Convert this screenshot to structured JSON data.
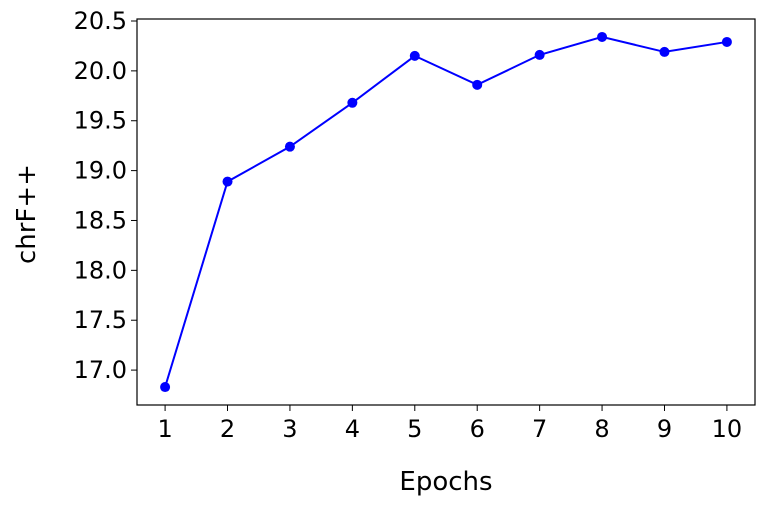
{
  "chart_data": {
    "type": "line",
    "xlabel": "Epochs",
    "ylabel": "chrF++",
    "x": [
      1,
      2,
      3,
      4,
      5,
      6,
      7,
      8,
      9,
      10
    ],
    "series": [
      {
        "values": [
          16.83,
          18.89,
          19.24,
          19.68,
          20.15,
          19.86,
          20.16,
          20.34,
          20.19,
          20.29
        ],
        "color": "#0000ff",
        "marker": "circle"
      }
    ],
    "xlim": [
      0.55,
      10.45
    ],
    "ylim": [
      16.65,
      20.52
    ],
    "xticks": [
      "1",
      "2",
      "3",
      "4",
      "5",
      "6",
      "7",
      "8",
      "9",
      "10"
    ],
    "yticks": [
      "17.0",
      "17.5",
      "18.0",
      "18.5",
      "19.0",
      "19.5",
      "20.0",
      "20.5"
    ],
    "grid": false,
    "legend": "none"
  }
}
